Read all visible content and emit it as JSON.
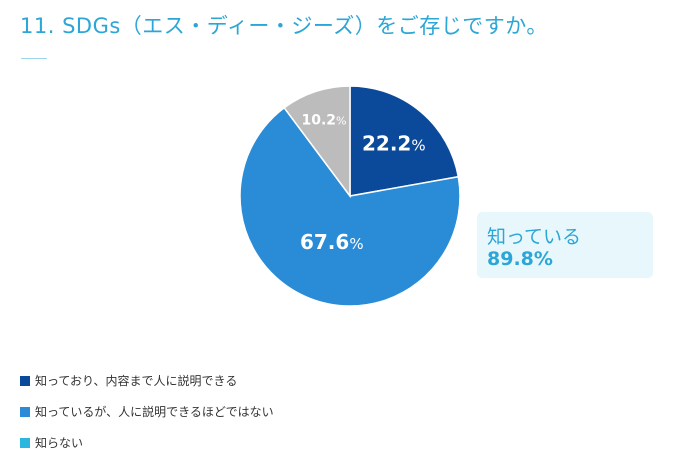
{
  "title": "11. SDGs（エス・ディー・ジーズ）をご存じですか。",
  "chart_data": {
    "type": "pie",
    "title": "11. SDGs（エス・ディー・ジーズ）をご存じですか。",
    "slices": [
      {
        "label": "知っており、内容まで人に説明できる",
        "value": 22.2,
        "display": "22.2",
        "color": "#0b4a9a",
        "pie_color": "#0b4a9a"
      },
      {
        "label": "知っているが、人に説明できるほどではない",
        "value": 67.6,
        "display": "67.6",
        "color": "#2a8bd6",
        "pie_color": "#2a8bd6"
      },
      {
        "label": "知らない",
        "value": 10.2,
        "display": "10.2",
        "color": "#2bb6e0",
        "pie_color": "#bcbcbc"
      }
    ],
    "unit": "%",
    "annotation": {
      "label": "知っている",
      "value": "89.8%"
    },
    "legend_position": "bottom-left"
  }
}
